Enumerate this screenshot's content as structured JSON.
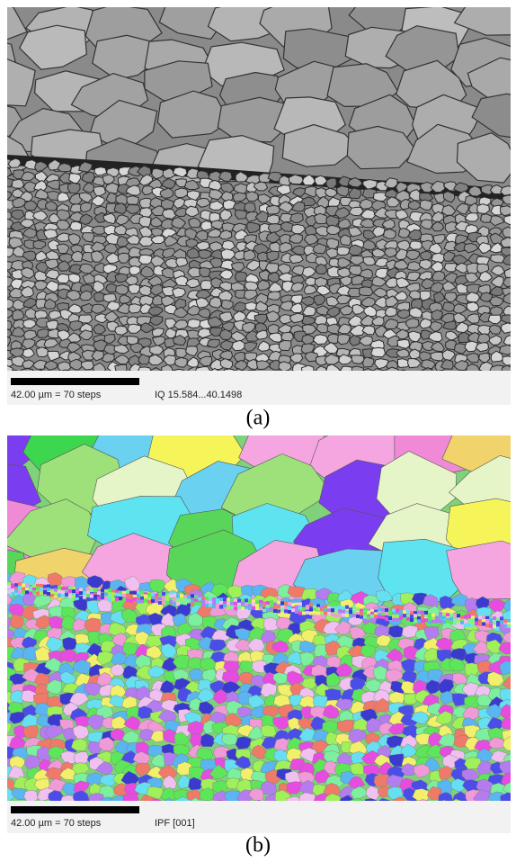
{
  "panels": [
    {
      "scale_bar": "42.00 µm = 70 steps",
      "map_label": "IQ 15.584...40.1498",
      "caption": "(a)"
    },
    {
      "scale_bar": "42.00 µm = 70 steps",
      "map_label": "IPF [001]",
      "caption": "(b)"
    }
  ]
}
